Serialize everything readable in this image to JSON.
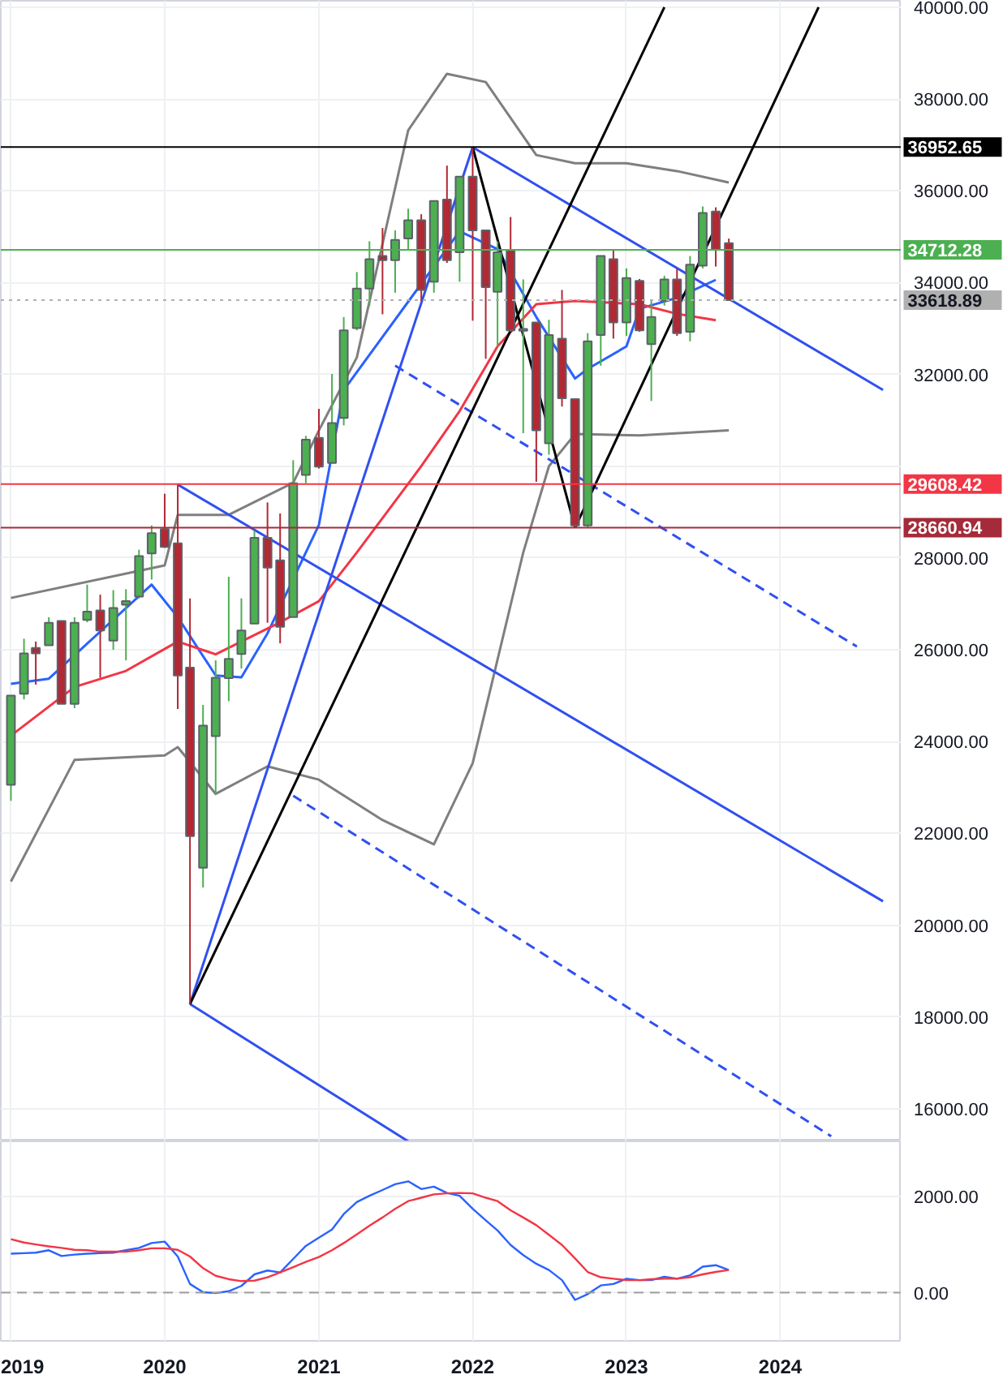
{
  "chart_data": [
    {
      "type": "candlestick",
      "x": [
        "2019-01",
        "2019-02",
        "2019-03",
        "2019-04",
        "2019-05",
        "2019-06",
        "2019-07",
        "2019-08",
        "2019-09",
        "2019-10",
        "2019-11",
        "2019-12",
        "2020-01",
        "2020-02",
        "2020-03",
        "2020-04",
        "2020-05",
        "2020-06",
        "2020-07",
        "2020-08",
        "2020-09",
        "2020-10",
        "2020-11",
        "2020-12",
        "2021-01",
        "2021-02",
        "2021-03",
        "2021-04",
        "2021-05",
        "2021-06",
        "2021-07",
        "2021-08",
        "2021-09",
        "2021-10",
        "2021-11",
        "2021-12",
        "2022-01",
        "2022-02",
        "2022-03",
        "2022-04",
        "2022-05",
        "2022-06",
        "2022-07",
        "2022-08",
        "2022-09",
        "2022-10",
        "2022-11",
        "2022-12",
        "2023-01",
        "2023-02",
        "2023-03",
        "2023-04",
        "2023-05",
        "2023-06",
        "2023-07",
        "2023-08",
        "2023-09"
      ],
      "ohlc": [
        [
          23060,
          25000,
          22710,
          25000
        ],
        [
          25040,
          26240,
          24920,
          25920
        ],
        [
          26040,
          26180,
          25240,
          25920
        ],
        [
          26100,
          26710,
          26100,
          26590
        ],
        [
          26630,
          26630,
          24820,
          24820
        ],
        [
          24820,
          26710,
          24730,
          26590
        ],
        [
          26650,
          27420,
          26600,
          26830
        ],
        [
          26860,
          27200,
          25390,
          26420
        ],
        [
          26200,
          27300,
          26000,
          26910
        ],
        [
          26980,
          27320,
          25770,
          27060
        ],
        [
          27160,
          28180,
          27120,
          28040
        ],
        [
          28100,
          28710,
          27530,
          28540
        ],
        [
          28630,
          29400,
          28220,
          28240
        ],
        [
          28320,
          29600,
          24710,
          25440
        ],
        [
          25610,
          27120,
          18280,
          21940
        ],
        [
          21250,
          24800,
          20820,
          24350
        ],
        [
          24120,
          25770,
          22850,
          25390
        ],
        [
          25380,
          27590,
          24880,
          25800
        ],
        [
          25910,
          27120,
          25590,
          26420
        ],
        [
          26570,
          28590,
          26570,
          28440
        ],
        [
          28440,
          29210,
          26590,
          27790
        ],
        [
          27950,
          28970,
          26140,
          26500
        ],
        [
          26710,
          30130,
          26710,
          29630
        ],
        [
          29810,
          30660,
          29630,
          30580
        ],
        [
          30620,
          31250,
          29950,
          29990
        ],
        [
          30070,
          32010,
          30070,
          30940
        ],
        [
          31050,
          33250,
          30890,
          32960
        ],
        [
          33010,
          34230,
          32960,
          33870
        ],
        [
          33870,
          34900,
          33490,
          34510
        ],
        [
          34580,
          35190,
          33310,
          34490
        ],
        [
          34490,
          35140,
          33780,
          34930
        ],
        [
          34960,
          35610,
          34720,
          35360
        ],
        [
          35360,
          35490,
          33600,
          33840
        ],
        [
          34020,
          35780,
          33780,
          35780
        ],
        [
          35810,
          36550,
          34430,
          34490
        ],
        [
          34660,
          36310,
          34020,
          36310
        ],
        [
          36310,
          36950,
          33170,
          35140
        ],
        [
          35140,
          35140,
          32340,
          33900
        ],
        [
          33800,
          34900,
          32600,
          34660
        ],
        [
          34700,
          35430,
          32930,
          32960
        ],
        [
          32950,
          34070,
          30720,
          32990
        ],
        [
          33130,
          33130,
          29660,
          30780
        ],
        [
          30500,
          33190,
          30250,
          32860
        ],
        [
          32780,
          33840,
          31300,
          31480
        ],
        [
          31460,
          31460,
          28660,
          28710
        ],
        [
          28710,
          32900,
          28660,
          32720
        ],
        [
          32860,
          34580,
          32190,
          34580
        ],
        [
          34510,
          34720,
          32780,
          33130
        ],
        [
          33130,
          34310,
          32840,
          34100
        ],
        [
          34040,
          34080,
          32930,
          32960
        ],
        [
          32660,
          33600,
          31420,
          33250
        ],
        [
          33600,
          34150,
          33500,
          34070
        ],
        [
          34070,
          34310,
          32840,
          32900
        ],
        [
          32930,
          34580,
          32720,
          34390
        ],
        [
          34370,
          35660,
          34310,
          35520
        ],
        [
          35550,
          35640,
          34350,
          34720
        ],
        [
          34860,
          34960,
          33600,
          33620
        ]
      ],
      "series": [
        {
          "type": "line",
          "color": "#7f7f7f",
          "x": [
            "2019-01",
            "2020-01",
            "2020-02",
            "2020-06",
            "2020-11",
            "2021-01",
            "2021-04",
            "2021-08",
            "2021-11",
            "2022-02",
            "2022-06",
            "2022-09",
            "2023-01",
            "2023-05",
            "2023-09"
          ],
          "values": [
            27130,
            27840,
            28940,
            28940,
            29640,
            30780,
            32370,
            37320,
            38550,
            38370,
            36780,
            36600,
            36600,
            36430,
            36180
          ]
        },
        {
          "type": "line",
          "color": "#7f7f7f",
          "x": [
            "2019-01",
            "2019-06",
            "2020-01",
            "2020-02",
            "2020-05",
            "2020-09",
            "2021-01",
            "2021-06",
            "2021-10",
            "2022-01",
            "2022-05",
            "2022-07",
            "2022-09",
            "2023-02",
            "2023-09"
          ],
          "values": [
            20950,
            23600,
            23700,
            23880,
            22860,
            23460,
            23170,
            22290,
            21760,
            23530,
            28120,
            30000,
            30700,
            30670,
            30780
          ]
        },
        {
          "type": "line",
          "color": "#2962ff",
          "x": [
            "2019-01",
            "2019-04",
            "2019-12",
            "2020-02",
            "2020-05",
            "2020-07",
            "2020-09",
            "2021-01",
            "2021-03",
            "2021-12",
            "2022-03",
            "2022-06",
            "2022-09",
            "2022-10",
            "2023-01",
            "2023-02",
            "2023-05",
            "2023-08"
          ],
          "values": [
            25260,
            25370,
            27420,
            26710,
            25440,
            25400,
            26360,
            28720,
            31660,
            35120,
            34730,
            33250,
            31910,
            32120,
            32610,
            33430,
            33670,
            34060
          ]
        },
        {
          "type": "line",
          "color": "#f23645",
          "x": [
            "2019-01",
            "2019-06",
            "2019-10",
            "2020-02",
            "2020-05",
            "2020-10",
            "2021-01",
            "2021-04",
            "2021-09",
            "2021-12",
            "2022-03",
            "2022-06",
            "2022-09",
            "2023-02",
            "2023-05",
            "2023-08"
          ],
          "values": [
            24130,
            25190,
            25540,
            26180,
            25900,
            26600,
            27060,
            28120,
            30000,
            31200,
            32610,
            33530,
            33600,
            33530,
            33320,
            33180
          ]
        },
        {
          "type": "line",
          "color": "#3050f0",
          "x": [
            "2020-03",
            "2022-01"
          ],
          "values": [
            18280,
            36950
          ]
        },
        {
          "type": "line",
          "color": "#3050f0",
          "x": [
            "2022-01",
            "2024-09"
          ],
          "values": [
            36950,
            31660
          ]
        },
        {
          "type": "line",
          "color": "#3050f0",
          "x": [
            "2020-02",
            "2024-09"
          ],
          "values": [
            29600,
            20520
          ]
        },
        {
          "type": "line",
          "color": "#3050f0",
          "x": [
            "2020-03",
            "2021-08"
          ],
          "values": [
            18280,
            15290
          ]
        },
        {
          "type": "line",
          "color": "#3050f0",
          "line_style": "dashed",
          "x": [
            "2020-11",
            "2024-05"
          ],
          "values": [
            22820,
            15400
          ]
        },
        {
          "type": "line",
          "color": "#3050f0",
          "line_style": "dashed",
          "x": [
            "2021-07",
            "2024-07"
          ],
          "values": [
            32190,
            26070
          ]
        },
        {
          "type": "line",
          "color": "#000000",
          "x": [
            "2022-01",
            "2022-09"
          ],
          "values": [
            36950,
            28660
          ]
        },
        {
          "type": "line",
          "color": "#000000",
          "x": [
            "2022-09",
            "2024-04"
          ],
          "values": [
            28660,
            40000
          ]
        },
        {
          "type": "line",
          "color": "#000000",
          "x": [
            "2020-03",
            "2023-04"
          ],
          "values": [
            18280,
            40000
          ]
        }
      ],
      "ref_lines": [
        {
          "axis": "y",
          "value": 36952.65,
          "label": "36952.65",
          "color": "#000000"
        },
        {
          "axis": "y",
          "value": 34712.28,
          "label": "34712.28",
          "color": "#4caf50"
        },
        {
          "axis": "y",
          "value": 33618.89,
          "label": "33618.89",
          "color": "#b0b0b0",
          "line_style": "dotted"
        },
        {
          "axis": "y",
          "value": 29608.42,
          "label": "29608.42",
          "color": "#f23645"
        },
        {
          "axis": "y",
          "value": 28660.94,
          "label": "28660.94",
          "color": "#a52a3a"
        }
      ],
      "xlim": [
        "2018-12-08",
        "2024-10-15"
      ],
      "ylim": [
        15290,
        40140
      ],
      "xticks": [
        "2019",
        "2020",
        "2021",
        "2022",
        "2023",
        "2024"
      ],
      "yticks": [
        {
          "value": 16000,
          "label": "16000.00"
        },
        {
          "value": 18000,
          "label": "18000.00"
        },
        {
          "value": 20000,
          "label": "20000.00"
        },
        {
          "value": 22000,
          "label": "22000.00"
        },
        {
          "value": 24000,
          "label": "24000.00"
        },
        {
          "value": 26000,
          "label": "26000.00"
        },
        {
          "value": 28000,
          "label": "28000.00"
        },
        {
          "value": 30000,
          "label": null
        },
        {
          "value": 32000,
          "label": "32000.00"
        },
        {
          "value": 34000,
          "label": "34000.00"
        },
        {
          "value": 36000,
          "label": "36000.00"
        },
        {
          "value": 38000,
          "label": "38000.00"
        },
        {
          "value": 40000,
          "label": "40000.00"
        }
      ],
      "tick_labels": "y",
      "grid": true
    },
    {
      "type": "line",
      "x": [
        "2019-01",
        "2019-02",
        "2019-03",
        "2019-04",
        "2019-05",
        "2019-06",
        "2019-07",
        "2019-08",
        "2019-09",
        "2019-10",
        "2019-11",
        "2019-12",
        "2020-01",
        "2020-02",
        "2020-03",
        "2020-04",
        "2020-05",
        "2020-06",
        "2020-07",
        "2020-08",
        "2020-09",
        "2020-10",
        "2020-11",
        "2020-12",
        "2021-01",
        "2021-02",
        "2021-03",
        "2021-04",
        "2021-05",
        "2021-06",
        "2021-07",
        "2021-08",
        "2021-09",
        "2021-10",
        "2021-11",
        "2021-12",
        "2022-01",
        "2022-02",
        "2022-03",
        "2022-04",
        "2022-05",
        "2022-06",
        "2022-07",
        "2022-08",
        "2022-09",
        "2022-10",
        "2022-11",
        "2022-12",
        "2023-01",
        "2023-02",
        "2023-03",
        "2023-04",
        "2023-05",
        "2023-06",
        "2023-07",
        "2023-08",
        "2023-09"
      ],
      "series": [
        {
          "color": "#2962ff",
          "values": [
            810,
            820,
            830,
            880,
            760,
            790,
            810,
            820,
            830,
            880,
            930,
            1030,
            1060,
            750,
            180,
            10,
            -10,
            30,
            140,
            380,
            460,
            420,
            700,
            970,
            1140,
            1310,
            1630,
            1880,
            2010,
            2130,
            2250,
            2310,
            2150,
            2200,
            2070,
            2010,
            1740,
            1500,
            1290,
            990,
            780,
            600,
            470,
            260,
            -150,
            -30,
            150,
            180,
            290,
            260,
            260,
            330,
            290,
            360,
            540,
            570,
            470
          ]
        },
        {
          "color": "#f23645",
          "values": [
            1110,
            1040,
            1000,
            960,
            930,
            890,
            880,
            850,
            850,
            850,
            880,
            920,
            920,
            890,
            750,
            510,
            350,
            280,
            240,
            250,
            320,
            420,
            530,
            640,
            740,
            880,
            1030,
            1210,
            1390,
            1560,
            1740,
            1900,
            1970,
            2040,
            2060,
            2070,
            2060,
            1970,
            1900,
            1710,
            1560,
            1400,
            1200,
            990,
            710,
            430,
            320,
            290,
            260,
            260,
            280,
            290,
            290,
            320,
            380,
            430,
            470
          ]
        }
      ],
      "ref_lines": [
        {
          "axis": "y",
          "value": 0,
          "color": "#9e9e9e",
          "line_style": "dashed"
        }
      ],
      "xlim": [
        "2018-12-08",
        "2024-10-15"
      ],
      "ylim": [
        -1000,
        3140
      ],
      "xticks": [
        "2019",
        "2020",
        "2021",
        "2022",
        "2023",
        "2024"
      ],
      "yticks": [
        {
          "value": 0,
          "label": "0.00"
        },
        {
          "value": 2000,
          "label": "2000.00"
        }
      ],
      "grid": true
    }
  ]
}
